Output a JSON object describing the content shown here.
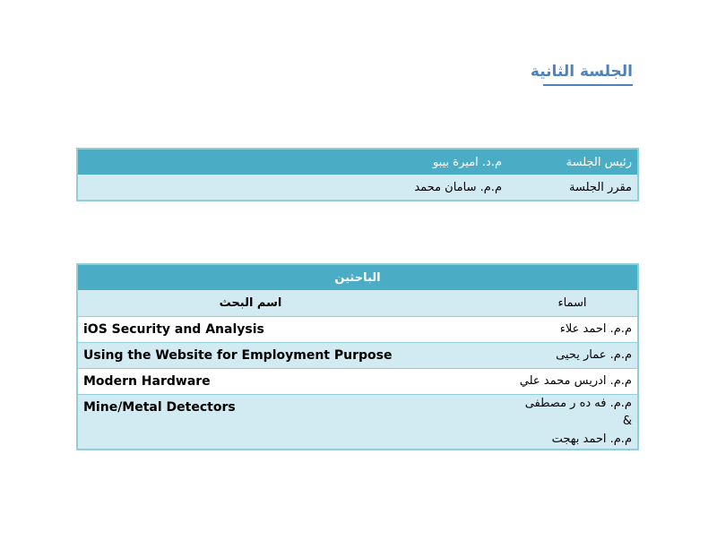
{
  "title": "الجلسة الثانية",
  "session_table": {
    "rows": [
      {
        "label": "رئيس الجلسة",
        "value": "م.د. اميرة بيبو"
      },
      {
        "label": "مقرر الجلسة",
        "value": "م.م. سامان محمد"
      }
    ]
  },
  "researchers_table": {
    "header": "الباحثين",
    "columns": {
      "names": "اسماء",
      "research": "اسم البحث"
    },
    "rows": [
      {
        "names": [
          "م.م. احمد علاء"
        ],
        "research": "iOS Security and Analysis"
      },
      {
        "names": [
          "م.م. عمار يحيى"
        ],
        "research": "Using the Website for Employment Purpose"
      },
      {
        "names": [
          "م.م. ادريس محمد علي"
        ],
        "research": "Modern Hardware"
      },
      {
        "names": [
          "م.م. فه ده ر مصطفى &",
          "م.م. احمد بهجت"
        ],
        "research": "Mine/Metal Detectors"
      }
    ]
  }
}
